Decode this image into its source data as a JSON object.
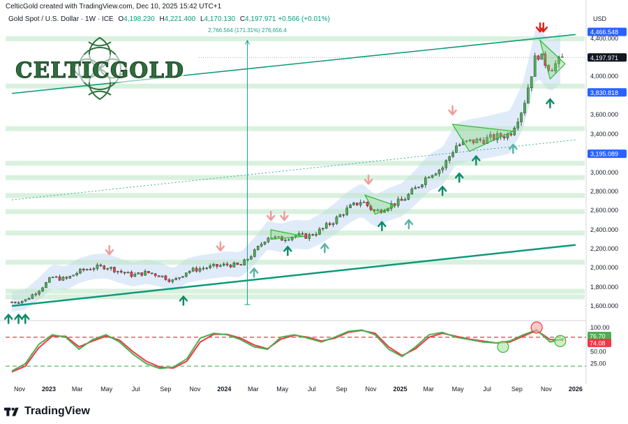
{
  "header": {
    "title": "CelticGold created with TradingView.com, Dec 10, 2025 15:42 UTC+1",
    "symbol": "Gold Spot / U.S. Dollar · 1W · ICE",
    "o_label": "O",
    "o_value": "4,198.230",
    "h_label": "H",
    "h_value": "4,221.400",
    "l_label": "L",
    "l_value": "4,170.130",
    "c_label": "C",
    "c_value": "4,197.971",
    "change": "+0.566 (+0.01%)"
  },
  "logo": {
    "text": "CELTICGOLD"
  },
  "footer": {
    "brand": "TradingView"
  },
  "colors": {
    "up": "#089981",
    "down": "#f23645",
    "candle_up": "#4caf50",
    "channel": "#0b9a78",
    "band": "#c9ddf5",
    "stoch_k": "#4caf50",
    "stoch_d": "#f23645",
    "label_blue": "#2962ff"
  },
  "icons": [
    "up-arrow-icon",
    "down-arrow-icon",
    "tradingview-logo-icon",
    "celtic-knot-icon"
  ],
  "chart_data": [
    {
      "type": "line",
      "title": "Gold Spot / U.S. Dollar · 1W · ICE",
      "ylabel": "USD",
      "scale": "linear",
      "ylim": [
        1500,
        4550
      ],
      "y_ticks": [
        "4,400.000",
        "4,000.000",
        "3,600.000",
        "3,400.000",
        "3,000.000",
        "2,800.000",
        "2,600.000",
        "2,400.000",
        "2,200.000",
        "2,000.000",
        "1,800.000",
        "1,600.000"
      ],
      "y_tick_values": [
        4400,
        4000,
        3600,
        3400,
        3000,
        2800,
        2600,
        2400,
        2200,
        2000,
        1800,
        1600
      ],
      "x_ticks": [
        "Nov",
        "2023",
        "Mar",
        "May",
        "Jul",
        "Sep",
        "Nov",
        "2024",
        "Mar",
        "May",
        "Jul",
        "Sep",
        "Nov",
        "2025",
        "Mar",
        "May",
        "Jul",
        "Sep",
        "Nov",
        "2026"
      ],
      "x_tick_dates": [
        "2022-11-01",
        "2023-01-01",
        "2023-03-01",
        "2023-05-01",
        "2023-07-01",
        "2023-09-01",
        "2023-11-01",
        "2024-01-01",
        "2024-03-01",
        "2024-05-01",
        "2024-07-01",
        "2024-09-01",
        "2024-11-01",
        "2025-01-01",
        "2025-03-01",
        "2025-05-01",
        "2025-07-01",
        "2025-09-01",
        "2025-11-01",
        "2026-01-01"
      ],
      "price_labels": [
        {
          "text": "4,466.548",
          "value": 4466.548,
          "color": "#2962ff"
        },
        {
          "text": "4,197.971",
          "value": 4197.971,
          "color": "#131722"
        },
        {
          "text": "3,830.818",
          "value": 3830.818,
          "color": "#2962ff"
        },
        {
          "text": "3,195.089",
          "value": 3195.089,
          "color": "#2962ff"
        }
      ],
      "measure_text": "2,766.564 (171.31%) 276,656.4",
      "series": [
        {
          "kind": "weekly-close",
          "x": [
            "2022-10-16",
            "2022-11-13",
            "2022-12-11",
            "2023-01-08",
            "2023-02-05",
            "2023-03-05",
            "2023-04-02",
            "2023-04-30",
            "2023-05-28",
            "2023-06-25",
            "2023-07-23",
            "2023-08-20",
            "2023-09-17",
            "2023-10-15",
            "2023-11-12",
            "2023-12-10",
            "2024-01-07",
            "2024-02-04",
            "2024-03-03",
            "2024-03-31",
            "2024-04-28",
            "2024-05-26",
            "2024-06-23",
            "2024-07-21",
            "2024-08-18",
            "2024-09-15",
            "2024-10-13",
            "2024-11-10",
            "2024-12-08",
            "2025-01-05",
            "2025-02-02",
            "2025-03-02",
            "2025-03-30",
            "2025-04-27",
            "2025-05-25",
            "2025-06-22",
            "2025-07-20",
            "2025-08-17",
            "2025-09-14",
            "2025-10-12",
            "2025-11-09",
            "2025-12-07"
          ],
          "values": [
            1640,
            1660,
            1770,
            1900,
            1880,
            1960,
            2000,
            2010,
            1960,
            1920,
            1950,
            1920,
            1860,
            1960,
            1990,
            2010,
            2030,
            2020,
            2160,
            2330,
            2300,
            2340,
            2330,
            2400,
            2500,
            2620,
            2700,
            2580,
            2650,
            2700,
            2830,
            2980,
            3050,
            3280,
            3320,
            3340,
            3370,
            3400,
            3680,
            4250,
            4080,
            4198
          ]
        }
      ],
      "channel": {
        "lower": [
          {
            "x": "2022-10-16",
            "y": 1600
          },
          {
            "x": "2026-01-01",
            "y": 2240
          }
        ],
        "upper": [
          {
            "x": "2022-10-16",
            "y": 3820
          },
          {
            "x": "2026-01-01",
            "y": 4440
          }
        ],
        "middle_dotted": [
          {
            "x": "2022-10-16",
            "y": 2710
          },
          {
            "x": "2026-01-01",
            "y": 3340
          }
        ]
      },
      "support_zones": [
        1700,
        1760,
        2060,
        2370,
        2590,
        2760,
        2950,
        3100,
        3460,
        3900,
        4400
      ],
      "grid": true,
      "legend": "none"
    },
    {
      "type": "line",
      "title": "",
      "ylim": [
        0,
        110
      ],
      "y_ticks": [
        "100.00",
        "50.00",
        "25.00"
      ],
      "y_tick_values": [
        100,
        50,
        25
      ],
      "levels": {
        "upper_dashed": 80,
        "lower_dashed": 20
      },
      "current_labels": [
        {
          "text": "76.70",
          "value": 76.7,
          "series": "K"
        },
        {
          "text": "74.08",
          "value": 74.08,
          "series": "D"
        }
      ],
      "x": [
        "2022-10-16",
        "2022-11-13",
        "2022-12-11",
        "2023-01-08",
        "2023-02-05",
        "2023-03-05",
        "2023-04-02",
        "2023-04-30",
        "2023-05-28",
        "2023-06-25",
        "2023-07-23",
        "2023-08-20",
        "2023-09-17",
        "2023-10-15",
        "2023-11-12",
        "2023-12-10",
        "2024-01-07",
        "2024-02-04",
        "2024-03-03",
        "2024-03-31",
        "2024-04-28",
        "2024-05-26",
        "2024-06-23",
        "2024-07-21",
        "2024-08-18",
        "2024-09-15",
        "2024-10-13",
        "2024-11-10",
        "2024-12-08",
        "2025-01-05",
        "2025-02-02",
        "2025-03-02",
        "2025-03-30",
        "2025-04-27",
        "2025-05-25",
        "2025-06-22",
        "2025-07-20",
        "2025-08-17",
        "2025-09-14",
        "2025-10-12",
        "2025-11-09",
        "2025-12-07"
      ],
      "series": [
        {
          "values": [
            10,
            25,
            65,
            85,
            80,
            55,
            75,
            85,
            70,
            45,
            25,
            15,
            18,
            35,
            78,
            88,
            85,
            75,
            60,
            55,
            80,
            85,
            78,
            70,
            80,
            92,
            95,
            85,
            55,
            40,
            60,
            85,
            90,
            80,
            75,
            70,
            68,
            72,
            85,
            95,
            70,
            77
          ]
        },
        {
          "values": [
            8,
            20,
            58,
            82,
            82,
            60,
            72,
            82,
            74,
            50,
            30,
            18,
            16,
            30,
            70,
            86,
            86,
            78,
            64,
            56,
            76,
            84,
            80,
            72,
            78,
            90,
            94,
            88,
            60,
            42,
            56,
            80,
            88,
            82,
            76,
            72,
            68,
            70,
            82,
            94,
            75,
            74
          ]
        }
      ],
      "circles": [
        {
          "x": "2025-08-03",
          "y": 60
        },
        {
          "x": "2025-10-12",
          "y": 100
        },
        {
          "x": "2025-11-30",
          "y": 72
        }
      ],
      "grid": true,
      "legend": "none"
    }
  ]
}
